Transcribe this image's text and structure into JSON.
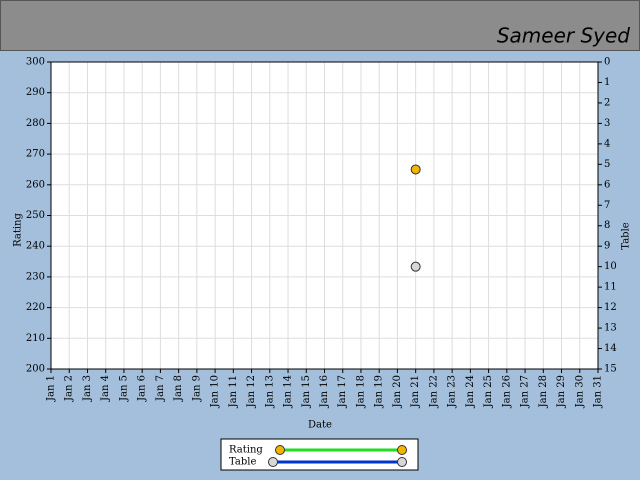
{
  "chart_data": {
    "type": "scatter",
    "title": "Sameer Syed",
    "x_label": "Date",
    "y_label": "Rating",
    "y2_label": "Table",
    "categories": [
      "Jan 1",
      "Jan 2",
      "Jan 3",
      "Jan 4",
      "Jan 5",
      "Jan 6",
      "Jan 7",
      "Jan 8",
      "Jan 9",
      "Jan 10",
      "Jan 11",
      "Jan 12",
      "Jan 13",
      "Jan 14",
      "Jan 15",
      "Jan 16",
      "Jan 17",
      "Jan 18",
      "Jan 19",
      "Jan 20",
      "Jan 21",
      "Jan 22",
      "Jan 23",
      "Jan 24",
      "Jan 25",
      "Jan 26",
      "Jan 27",
      "Jan 28",
      "Jan 29",
      "Jan 30",
      "Jan 31"
    ],
    "series": [
      {
        "name": "Rating",
        "color": "#22dd22",
        "marker_color": "#f5b400",
        "values": [
          null,
          null,
          null,
          null,
          null,
          null,
          null,
          null,
          null,
          null,
          null,
          null,
          null,
          null,
          null,
          null,
          null,
          null,
          null,
          null,
          265,
          null,
          null,
          null,
          null,
          null,
          null,
          null,
          null,
          null,
          null
        ]
      },
      {
        "name": "Table",
        "axis": "y2",
        "color": "#0033cc",
        "marker_color": "#d8d8d8",
        "values": [
          null,
          null,
          null,
          null,
          null,
          null,
          null,
          null,
          null,
          null,
          null,
          null,
          null,
          null,
          null,
          null,
          null,
          null,
          null,
          null,
          10,
          null,
          null,
          null,
          null,
          null,
          null,
          null,
          null,
          null,
          null
        ]
      }
    ],
    "ylim": [
      200,
      300
    ],
    "yticks": [
      200,
      210,
      220,
      230,
      240,
      250,
      260,
      270,
      280,
      290,
      300
    ],
    "y2lim": [
      15,
      0
    ],
    "y2ticks": [
      0,
      1,
      2,
      3,
      4,
      5,
      6,
      7,
      8,
      9,
      10,
      11,
      12,
      13,
      14,
      15
    ],
    "grid": true
  }
}
